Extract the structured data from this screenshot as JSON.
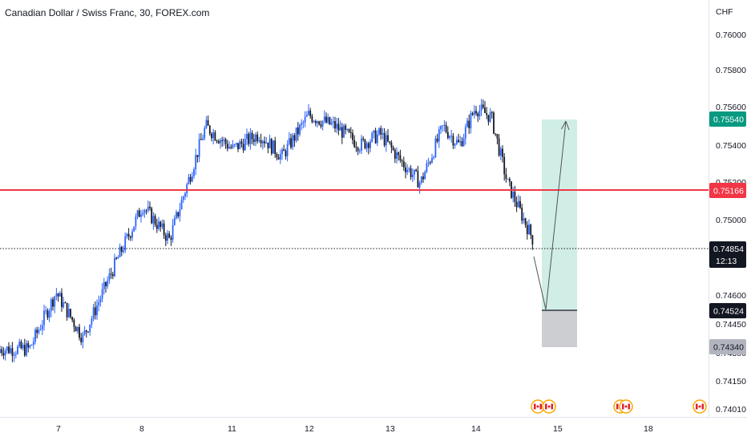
{
  "header": {
    "title": "Canadian Dollar / Swiss Franc, 30, FOREX.com"
  },
  "colors": {
    "background": "#ffffff",
    "up_candle": "#2962ff",
    "down_candle": "#131722",
    "resistance_line": "#f23645",
    "target_zone": "#d1eee6",
    "stop_zone": "#c8c9cc",
    "target_tag": "#089981",
    "resistance_tag": "#f23645",
    "price_tag": "#131722",
    "stop_tag": "#b2b5be",
    "arrow": "#50535e"
  },
  "price_axis": {
    "currency": "CHF",
    "labels": [
      "0.76000",
      "0.75800",
      "0.75600",
      "0.75400",
      "0.75200",
      "0.75000",
      "0.74600",
      "0.74450",
      "0.74300",
      "0.74150",
      "0.74010"
    ]
  },
  "price_tags": {
    "target": "0.75540",
    "resistance": "0.75166",
    "current_price": "0.74854",
    "countdown": "12:13",
    "entry": "0.74524",
    "stop": "0.74340"
  },
  "time_axis": {
    "labels": [
      "7",
      "8",
      "11",
      "12",
      "13",
      "14",
      "15",
      "18"
    ]
  },
  "event_icons": [
    {
      "name": "canada-flag-icon",
      "group": 1
    },
    {
      "name": "canada-flag-icon",
      "group": 1
    },
    {
      "name": "canada-flag-icon",
      "group": 2
    },
    {
      "name": "canada-flag-icon",
      "group": 2
    },
    {
      "name": "canada-flag-icon",
      "group": 3
    }
  ],
  "chart_data": {
    "type": "candlestick",
    "symbol": "CADCHF",
    "timeframe": "30",
    "y_range": [
      0.7396,
      0.7617
    ],
    "resistance_level": 0.75166,
    "current_price": 0.74854,
    "trade_setup": {
      "entry": 0.74524,
      "target": 0.7554,
      "stop": 0.7434
    },
    "path_points": [
      [
        "7",
        0.7432
      ],
      [
        "7",
        0.7462
      ],
      [
        "7",
        0.7438
      ],
      [
        "8",
        0.7478
      ],
      [
        "8",
        0.7508
      ],
      [
        "8",
        0.749
      ],
      [
        "11",
        0.755
      ],
      [
        "11",
        0.7538
      ],
      [
        "11",
        0.7546
      ],
      [
        "12",
        0.7534
      ],
      [
        "12",
        0.7556
      ],
      [
        "12",
        0.755
      ],
      [
        "13",
        0.754
      ],
      [
        "13",
        0.7546
      ],
      [
        "13",
        0.7532
      ],
      [
        "13",
        0.752
      ],
      [
        "14",
        0.755
      ],
      [
        "14",
        0.754
      ],
      [
        "14",
        0.756
      ],
      [
        "14",
        0.7555
      ],
      [
        "14",
        0.752
      ],
      [
        "15",
        0.749
      ],
      [
        "15",
        0.7485
      ]
    ]
  }
}
